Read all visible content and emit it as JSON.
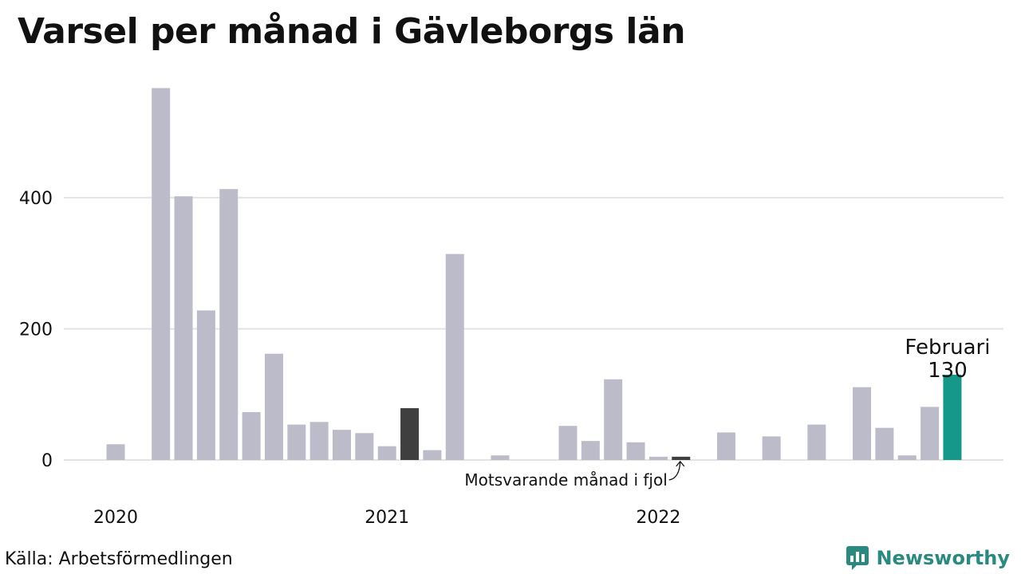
{
  "title": "Varsel per månad i Gävleborgs län",
  "source": "Källa: Arbetsförmedlingen",
  "brand": {
    "name": "Newsworthy",
    "icon": "bar-chart-speech-bubble-icon"
  },
  "colors": {
    "bar": "#bcbbca",
    "previous_year": "#3f3f3f",
    "current": "#15978a",
    "grid": "#e3e3e3",
    "text": "#111111"
  },
  "chart_data": {
    "type": "bar",
    "title": "Varsel per månad i Gävleborgs län",
    "xlabel": "",
    "ylabel": "",
    "ylim": [
      0,
      570
    ],
    "y_ticks": [
      0,
      200,
      400
    ],
    "x_tick_labels": [
      {
        "label": "2020",
        "index": 0
      },
      {
        "label": "2021",
        "index": 12
      },
      {
        "label": "2022",
        "index": 24
      }
    ],
    "grid": true,
    "categories": [
      "2020-01",
      "2020-02",
      "2020-03",
      "2020-04",
      "2020-05",
      "2020-06",
      "2020-07",
      "2020-08",
      "2020-09",
      "2020-10",
      "2020-11",
      "2020-12",
      "2021-01",
      "2021-02",
      "2021-03",
      "2021-04",
      "2021-05",
      "2021-06",
      "2021-07",
      "2021-08",
      "2021-09",
      "2021-10",
      "2021-11",
      "2021-12",
      "2022-01",
      "2022-02",
      "2022-03",
      "2022-04",
      "2022-05",
      "2022-06",
      "2022-07",
      "2022-08",
      "2022-09",
      "2022-10",
      "2022-11",
      "2022-12",
      "2023-01",
      "2023-02"
    ],
    "values": [
      24,
      0,
      567,
      402,
      228,
      413,
      73,
      162,
      54,
      58,
      46,
      41,
      21,
      79,
      15,
      314,
      0,
      7,
      0,
      0,
      52,
      29,
      123,
      27,
      5,
      5,
      0,
      42,
      0,
      36,
      0,
      54,
      0,
      111,
      49,
      7,
      81,
      130
    ],
    "highlight": {
      "current_index": 37,
      "previous_year_indices": [
        13,
        25
      ]
    },
    "annotations": {
      "current_label": "Februari",
      "current_value": "130",
      "previous_year_label": "Motsvarande månad i fjol"
    }
  }
}
